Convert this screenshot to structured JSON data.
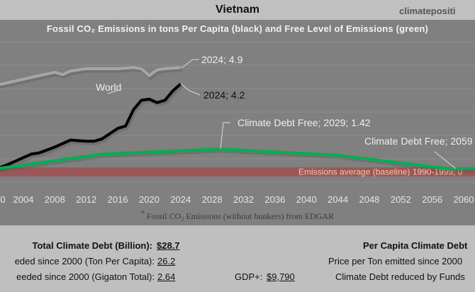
{
  "header": {
    "title": "Vietnam",
    "brand": "climatepositi"
  },
  "chart_data": {
    "type": "line",
    "title": "Fossil CO₂ Emissions in tons Per Capita (black) and Free Level of Emissions (green)",
    "xlim": [
      2000,
      2062
    ],
    "ylim": [
      0,
      6
    ],
    "grid": true,
    "x_ticks": [
      "0",
      "2004",
      "2008",
      "2012",
      "2016",
      "2020",
      "2024",
      "2028",
      "2032",
      "2036",
      "2040",
      "2044",
      "2048",
      "2052",
      "2056",
      "2060"
    ],
    "series": [
      {
        "name": "World",
        "color": "#a6a6a6",
        "x": [
          2000,
          2002,
          2004,
          2006,
          2008,
          2009,
          2010,
          2012,
          2014,
          2016,
          2018,
          2019,
          2020,
          2021,
          2022,
          2024
        ],
        "y": [
          4.1,
          4.25,
          4.4,
          4.55,
          4.7,
          4.6,
          4.75,
          4.85,
          4.85,
          4.85,
          4.9,
          4.85,
          4.55,
          4.8,
          4.85,
          4.9
        ]
      },
      {
        "name": "Vietnam",
        "color": "#000000",
        "x": [
          2000,
          2002,
          2003,
          2004,
          2005,
          2006,
          2008,
          2010,
          2012,
          2013,
          2014,
          2016,
          2017,
          2018,
          2019,
          2020,
          2021,
          2022,
          2023,
          2024
        ],
        "y": [
          0.5,
          0.75,
          0.9,
          1.05,
          1.2,
          1.25,
          1.5,
          1.8,
          1.75,
          1.75,
          1.85,
          2.3,
          2.4,
          3.1,
          3.5,
          3.55,
          3.4,
          3.5,
          3.9,
          4.2
        ]
      },
      {
        "name": "Free Level",
        "color": "#00b050",
        "x": [
          2000,
          2014,
          2029,
          2044,
          2058,
          2062
        ],
        "y": [
          0.55,
          1.2,
          1.42,
          1.15,
          0.58,
          0.58
        ]
      }
    ],
    "baseline_band": {
      "y": [
        0.25,
        0.63
      ],
      "color": "#a05050",
      "label": "Emissions average (baseline) 1990-1999; 0"
    },
    "annotations": [
      {
        "text": "2024; 4.9"
      },
      {
        "text": "World"
      },
      {
        "text": "2024; 4.2"
      },
      {
        "text": "Climate Debt Free; 2029; 1.42"
      },
      {
        "text": "Climate Debt Free; 2059"
      }
    ],
    "footnote": "Fossil CO₂ Emissions (without bunkers) from EDGAR"
  },
  "stats": {
    "total_label": "Total Climate Debt (Billion):",
    "total_value": "$28.7",
    "ton_label": "eded since 2000 (Ton Per Capita):",
    "ton_value": "26.2",
    "giga_label": "eeded since 2000 (Gigaton Total):",
    "giga_value": "2.64",
    "gdp_label": "GDP+:",
    "gdp_value": "$9,790",
    "per_capita_label": "Per Capita Climate Debt",
    "price_label": "Price per Ton emitted since 2000",
    "reduced_label": "Climate Debt reduced by Funds"
  }
}
